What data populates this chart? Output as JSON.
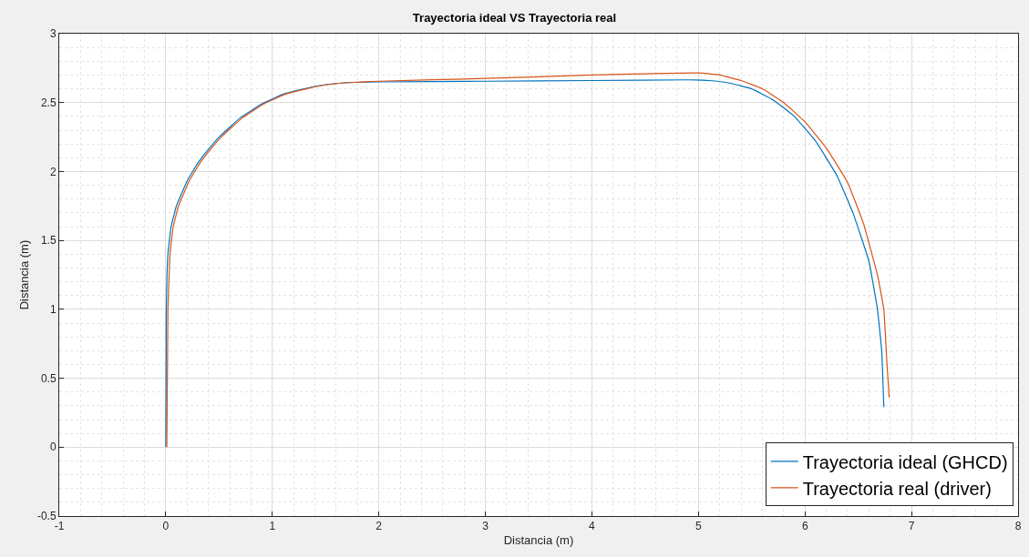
{
  "chart_data": {
    "type": "line",
    "title": "Trayectoria ideal VS Trayectoria real",
    "xlabel": "Distancia (m)",
    "ylabel": "Distancia (m)",
    "xlim": [
      -1,
      8
    ],
    "xticks": [
      -1,
      0,
      1,
      2,
      3,
      4,
      5,
      6,
      7,
      8
    ],
    "ylim": [
      -0.5,
      3
    ],
    "yticks": [
      -0.5,
      0,
      0.5,
      1,
      1.5,
      2,
      2.5,
      3
    ],
    "grid": true,
    "legend": "bottom right",
    "marker": "none",
    "line_style": "solid",
    "series": [
      {
        "name": "Trayectoria ideal (GHCD)",
        "color": "#0072bd",
        "x": [
          0,
          0.005,
          0.02,
          0.05,
          0.1,
          0.2,
          0.3,
          0.4,
          0.5,
          0.7,
          0.9,
          1.1,
          1.3,
          1.5,
          1.7,
          2,
          3,
          4,
          4.9,
          5.1,
          5.3,
          5.5,
          5.7,
          5.9,
          6.1,
          6.3,
          6.45,
          6.6,
          6.68,
          6.72,
          6.74
        ],
        "values": [
          0,
          1.0,
          1.4,
          1.6,
          1.75,
          1.93,
          2.06,
          2.16,
          2.25,
          2.39,
          2.49,
          2.56,
          2.6,
          2.63,
          2.645,
          2.65,
          2.655,
          2.66,
          2.665,
          2.66,
          2.64,
          2.6,
          2.52,
          2.4,
          2.22,
          1.97,
          1.7,
          1.35,
          1.0,
          0.7,
          0.29
        ]
      },
      {
        "name": "Trayectoria real (driver)",
        "color": "#d95319",
        "x": [
          0.01,
          0.02,
          0.04,
          0.07,
          0.12,
          0.22,
          0.32,
          0.42,
          0.52,
          0.72,
          0.92,
          1.12,
          1.32,
          1.52,
          1.72,
          2,
          3,
          4,
          5,
          5.2,
          5.4,
          5.6,
          5.8,
          6.0,
          6.2,
          6.4,
          6.55,
          6.68,
          6.74,
          6.77,
          6.79
        ],
        "values": [
          0,
          1.0,
          1.4,
          1.6,
          1.75,
          1.93,
          2.06,
          2.16,
          2.25,
          2.39,
          2.49,
          2.56,
          2.6,
          2.63,
          2.645,
          2.655,
          2.675,
          2.7,
          2.715,
          2.7,
          2.66,
          2.6,
          2.5,
          2.36,
          2.17,
          1.92,
          1.62,
          1.25,
          1.0,
          0.6,
          0.36
        ]
      }
    ]
  }
}
